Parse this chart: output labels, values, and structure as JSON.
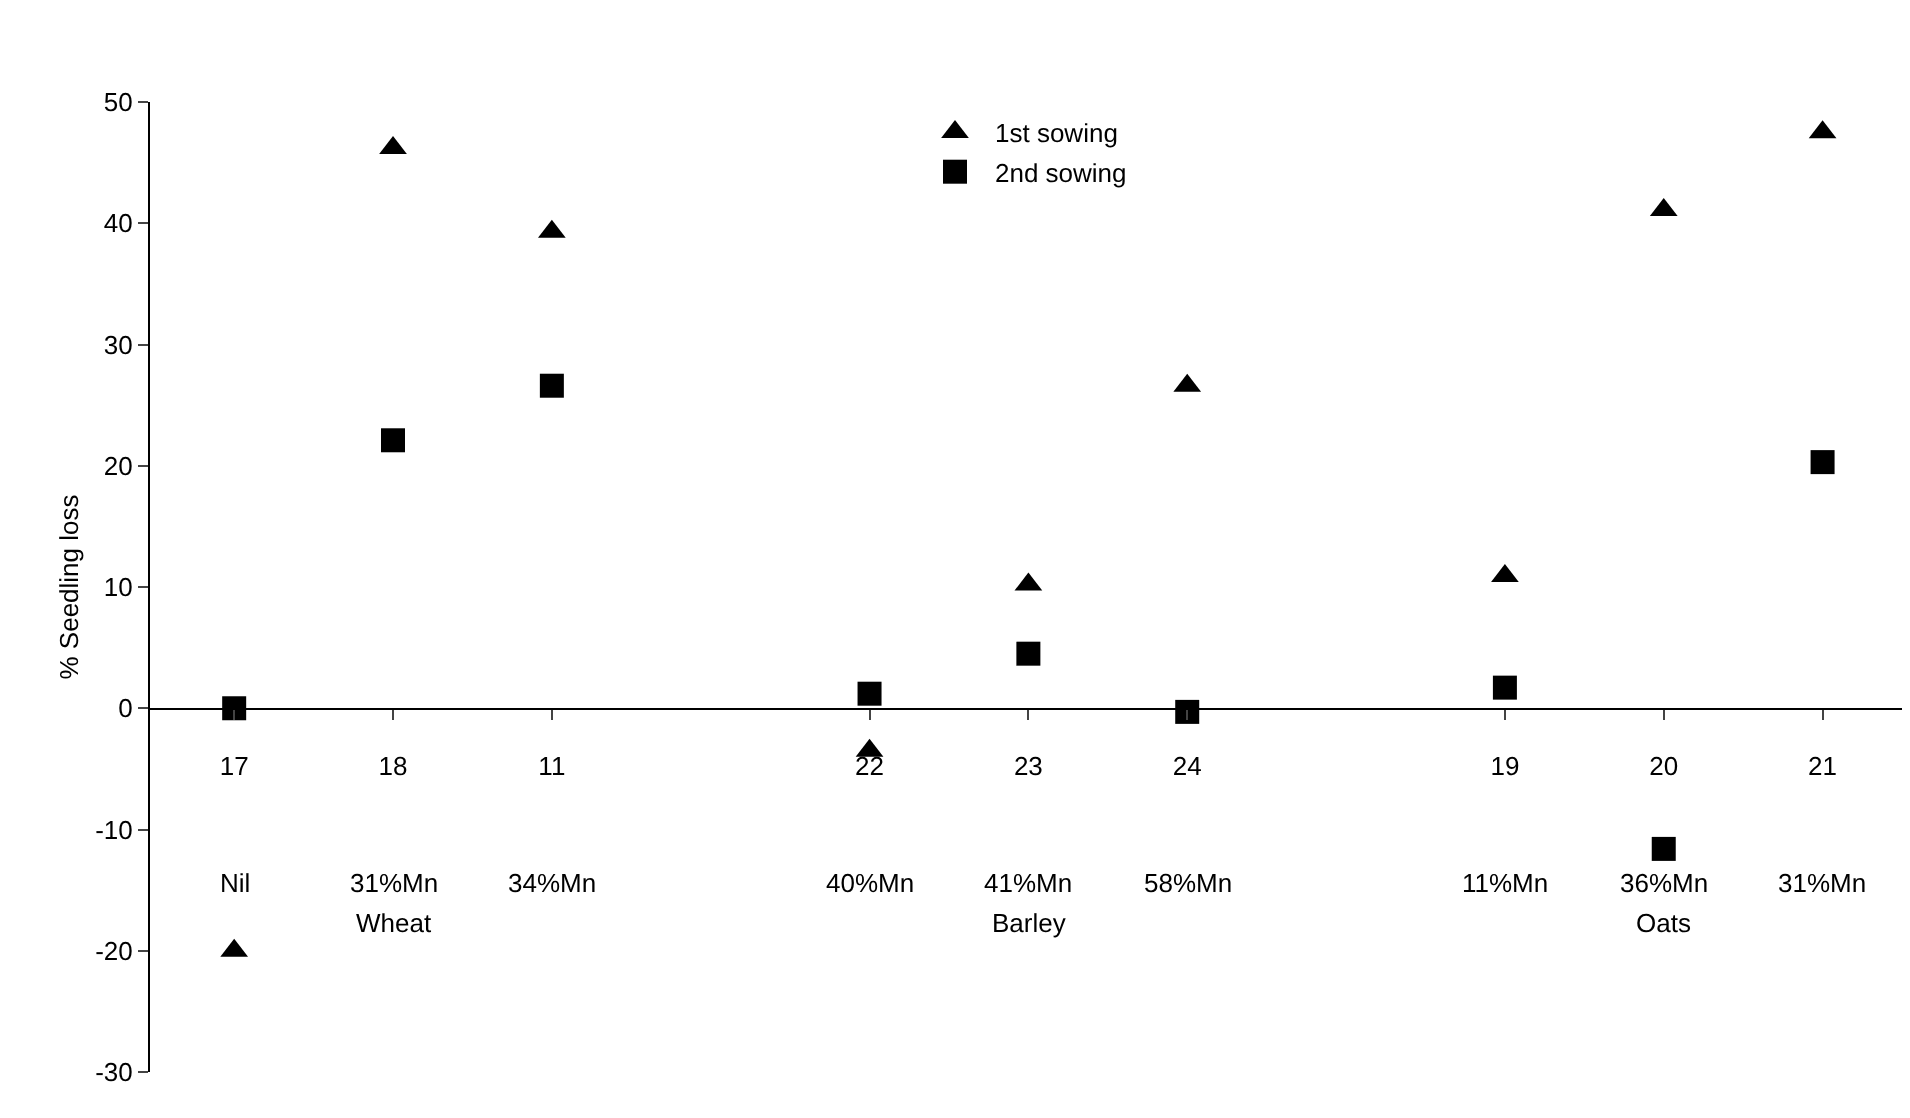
{
  "chart_data": {
    "type": "scatter",
    "ylabel": "% Seedling loss",
    "categories": [
      "17",
      "18",
      "11",
      null,
      "22",
      "23",
      "24",
      null,
      "19",
      "20",
      "21"
    ],
    "series": [
      {
        "name": "1st sowing",
        "color": "#000000",
        "marker": "triangle",
        "values": [
          -20,
          46.2,
          39.3,
          null,
          -3.5,
          10.2,
          26.6,
          null,
          10.9,
          41.1,
          47.5
        ]
      },
      {
        "name": "2nd sowing",
        "color": "#000000",
        "marker": "square",
        "values": [
          0,
          22.1,
          26.6,
          null,
          1.2,
          4.5,
          -0.3,
          null,
          1.7,
          -11.6,
          20.3
        ]
      }
    ],
    "ylim": [
      -30,
      50
    ],
    "yticks": [
      -30,
      -20,
      -10,
      0,
      10,
      20,
      30,
      40,
      50
    ],
    "grid": false,
    "legend": "top",
    "annotations": [
      "Nil",
      "31%Mn",
      "34%Mn",
      "40%Mn",
      "41%Mn",
      "58%Mn",
      "11%Mn",
      "36%Mn",
      "31%Mn",
      "Wheat",
      "Barley",
      "Oats"
    ]
  }
}
